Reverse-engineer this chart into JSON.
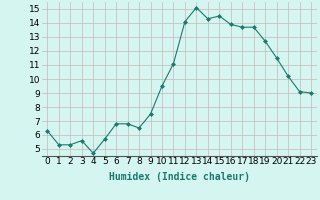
{
  "x": [
    0,
    1,
    2,
    3,
    4,
    5,
    6,
    7,
    8,
    9,
    10,
    11,
    12,
    13,
    14,
    15,
    16,
    17,
    18,
    19,
    20,
    21,
    22,
    23
  ],
  "y": [
    6.3,
    5.3,
    5.3,
    5.6,
    4.7,
    5.7,
    6.8,
    6.8,
    6.5,
    7.5,
    9.5,
    11.1,
    14.1,
    15.1,
    14.3,
    14.5,
    13.9,
    13.7,
    13.7,
    12.7,
    11.5,
    10.2,
    9.1,
    9.0
  ],
  "xlabel": "Humidex (Indice chaleur)",
  "ylim": [
    4.5,
    15.5
  ],
  "xlim": [
    -0.5,
    23.5
  ],
  "yticks": [
    5,
    6,
    7,
    8,
    9,
    10,
    11,
    12,
    13,
    14,
    15
  ],
  "xticks": [
    0,
    1,
    2,
    3,
    4,
    5,
    6,
    7,
    8,
    9,
    10,
    11,
    12,
    13,
    14,
    15,
    16,
    17,
    18,
    19,
    20,
    21,
    22,
    23
  ],
  "line_color": "#1a7a6e",
  "marker_color": "#1a7a6e",
  "bg_color": "#d4f5f0",
  "grid_color": "#c8b8b8",
  "xlabel_fontsize": 7,
  "tick_fontsize": 6.5
}
